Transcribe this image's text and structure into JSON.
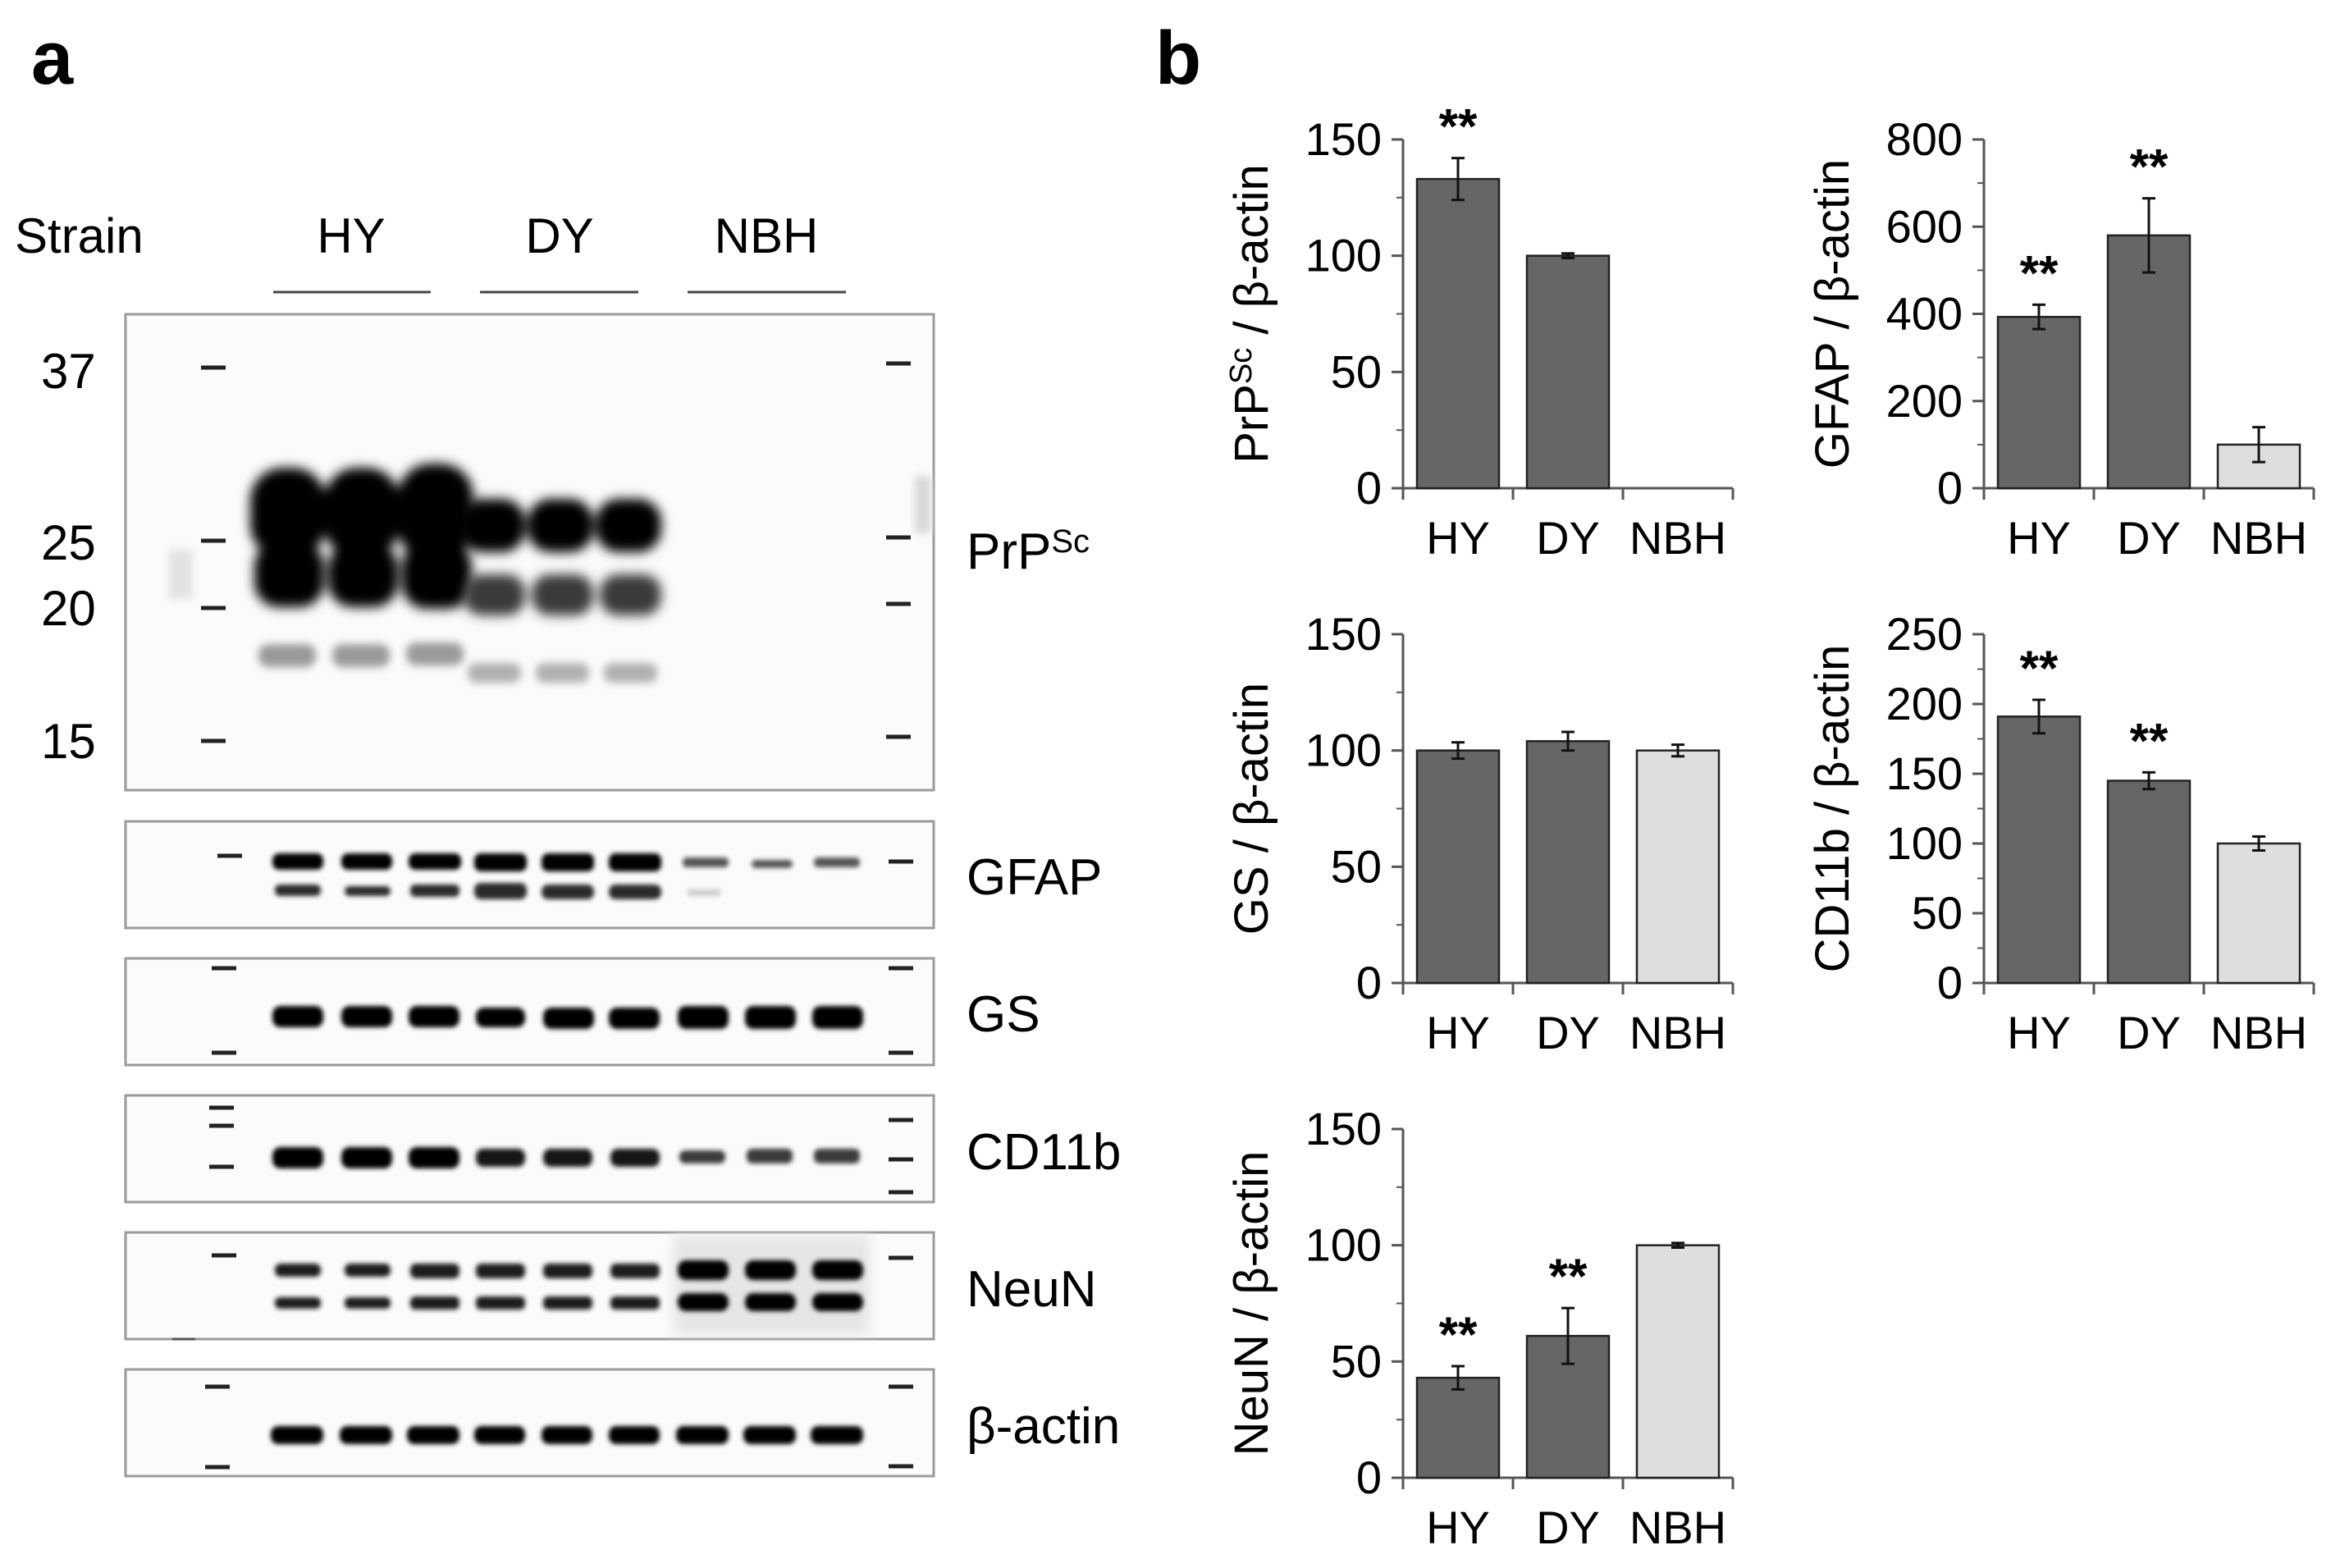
{
  "panel_a": {
    "letter": "a",
    "strain_label": "Strain",
    "groups": [
      "HY",
      "DY",
      "NBH"
    ],
    "mw_markers": [
      "37",
      "25",
      "20",
      "15"
    ],
    "proteins": [
      "PrP",
      "GFAP",
      "GS",
      "CD11b",
      "NeuN",
      "β-actin"
    ],
    "prp_superscript": "Sc"
  },
  "panel_b": {
    "letter": "b"
  },
  "colors": {
    "dark_bar": "#666666",
    "light_bar": "#dedede",
    "axis": "#555555",
    "bar_edge": "#222222"
  },
  "chart_data": [
    {
      "type": "bar",
      "ylabel": "PrP",
      "ylabel_sup": "Sc",
      "ylabel_tail": " / β-actin",
      "categories": [
        "HY",
        "DY",
        "NBH"
      ],
      "values": [
        133,
        100,
        0
      ],
      "errors": [
        9,
        1,
        0
      ],
      "significance": [
        "**",
        "",
        ""
      ],
      "ylim": [
        0,
        150
      ],
      "yticks": [
        "0",
        "50",
        "100",
        "150"
      ]
    },
    {
      "type": "bar",
      "ylabel": "GFAP",
      "ylabel_sup": "",
      "ylabel_tail": " / β-actin",
      "categories": [
        "HY",
        "DY",
        "NBH"
      ],
      "values": [
        393,
        580,
        100
      ],
      "errors": [
        28,
        85,
        40
      ],
      "significance": [
        "**",
        "**",
        ""
      ],
      "ylim": [
        0,
        800
      ],
      "yticks": [
        "0",
        "200",
        "400",
        "600",
        "800"
      ]
    },
    {
      "type": "bar",
      "ylabel": "GS",
      "ylabel_sup": "",
      "ylabel_tail": " / β-actin",
      "categories": [
        "HY",
        "DY",
        "NBH"
      ],
      "values": [
        100,
        104,
        100
      ],
      "errors": [
        3.5,
        4,
        2.5
      ],
      "significance": [
        "",
        "",
        ""
      ],
      "ylim": [
        0,
        150
      ],
      "yticks": [
        "0",
        "50",
        "100",
        "150"
      ]
    },
    {
      "type": "bar",
      "ylabel": "CD11b",
      "ylabel_sup": "",
      "ylabel_tail": " / β-actin",
      "categories": [
        "HY",
        "DY",
        "NBH"
      ],
      "values": [
        191,
        145,
        100
      ],
      "errors": [
        12,
        6,
        5
      ],
      "significance": [
        "**",
        "**",
        ""
      ],
      "ylim": [
        0,
        250
      ],
      "yticks": [
        "0",
        "50",
        "100",
        "150",
        "200",
        "250"
      ]
    },
    {
      "type": "bar",
      "ylabel": "NeuN",
      "ylabel_sup": "",
      "ylabel_tail": " / β-actin",
      "categories": [
        "HY",
        "DY",
        "NBH"
      ],
      "values": [
        43,
        61,
        100
      ],
      "errors": [
        5,
        12,
        1
      ],
      "significance": [
        "**",
        "**",
        ""
      ],
      "ylim": [
        0,
        150
      ],
      "yticks": [
        "0",
        "50",
        "100",
        "150"
      ]
    }
  ]
}
